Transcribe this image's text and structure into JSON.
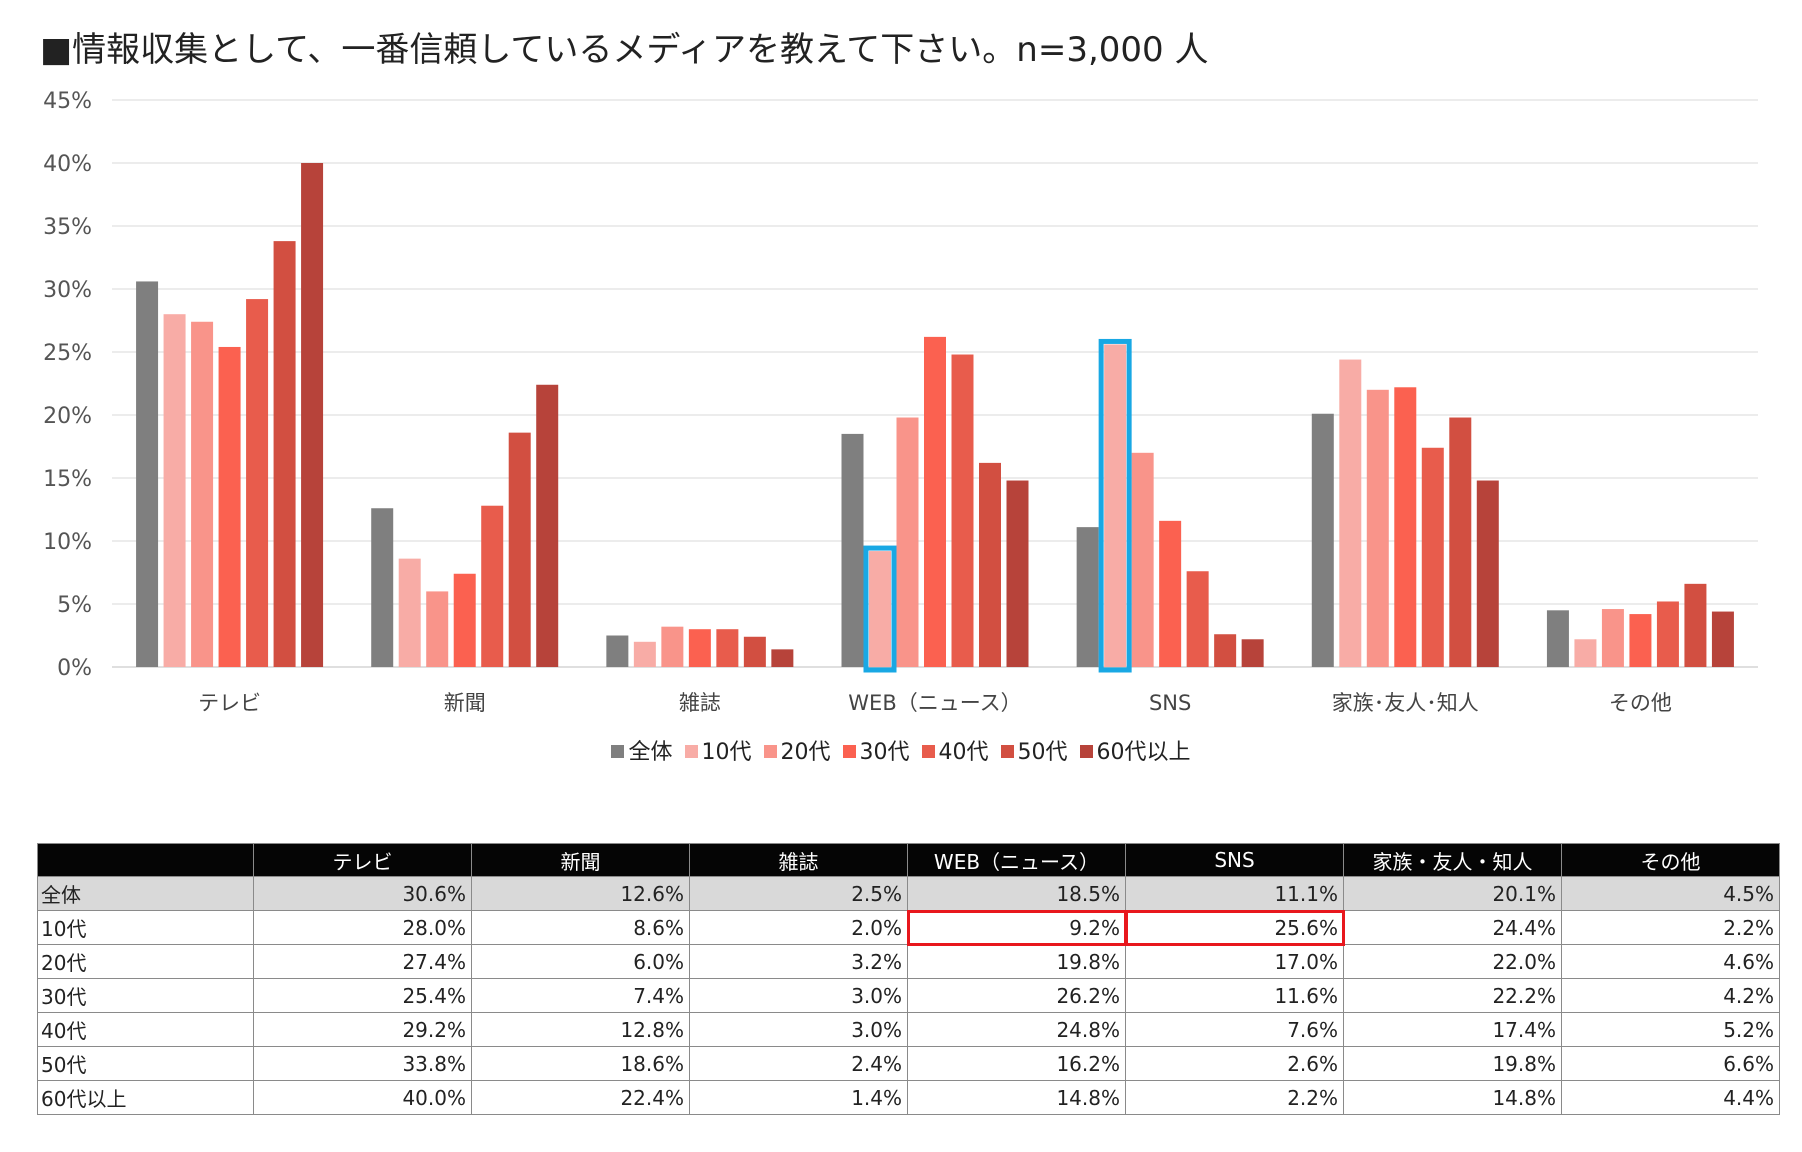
{
  "title": "■情報収集として、一番信頼しているメディアを教えて下さい。n=3,000 人",
  "chart_data": {
    "type": "bar",
    "title": "■情報収集として、一番信頼しているメディアを教えて下さい。n=3,000 人",
    "categories": [
      "テレビ",
      "新聞",
      "雑誌",
      "WEB（ニュース）",
      "SNS",
      "家族･友人･知人",
      "その他"
    ],
    "series": [
      {
        "name": "全体",
        "color": "#7f7f7f",
        "values": [
          30.6,
          12.6,
          2.5,
          18.5,
          11.1,
          20.1,
          4.5
        ]
      },
      {
        "name": "10代",
        "color": "#f8aca6",
        "values": [
          28.0,
          8.6,
          2.0,
          9.2,
          25.6,
          24.4,
          2.2
        ]
      },
      {
        "name": "20代",
        "color": "#f9948a",
        "values": [
          27.4,
          6.0,
          3.2,
          19.8,
          17.0,
          22.0,
          4.6
        ]
      },
      {
        "name": "30代",
        "color": "#fb6150",
        "values": [
          25.4,
          7.4,
          3.0,
          26.2,
          11.6,
          22.2,
          4.2
        ]
      },
      {
        "name": "40代",
        "color": "#e85c4c",
        "values": [
          29.2,
          12.8,
          3.0,
          24.8,
          7.6,
          17.4,
          5.2
        ]
      },
      {
        "name": "50代",
        "color": "#d24f41",
        "values": [
          33.8,
          18.6,
          2.4,
          16.2,
          2.6,
          19.8,
          6.6
        ]
      },
      {
        "name": "60代以上",
        "color": "#b7433a",
        "values": [
          40.0,
          22.4,
          1.4,
          14.8,
          2.2,
          14.8,
          4.4
        ]
      }
    ],
    "ylim": [
      0,
      45
    ],
    "yticks": [
      "0%",
      "5%",
      "10%",
      "15%",
      "20%",
      "25%",
      "30%",
      "35%",
      "40%",
      "45%"
    ],
    "grid": true,
    "legend_position": "bottom",
    "highlight_color": "#19a8e4",
    "highlights": [
      {
        "series": "10代",
        "category": "WEB（ニュース）"
      },
      {
        "series": "10代",
        "category": "SNS"
      }
    ]
  },
  "table": {
    "headers": [
      "",
      "テレビ",
      "新聞",
      "雑誌",
      "WEB（ニュース）",
      "SNS",
      "家族・友人・知人",
      "その他"
    ],
    "rows": [
      [
        "全体",
        "30.6%",
        "12.6%",
        "2.5%",
        "18.5%",
        "11.1%",
        "20.1%",
        "4.5%"
      ],
      [
        "10代",
        "28.0%",
        "8.6%",
        "2.0%",
        "9.2%",
        "25.6%",
        "24.4%",
        "2.2%"
      ],
      [
        "20代",
        "27.4%",
        "6.0%",
        "3.2%",
        "19.8%",
        "17.0%",
        "22.0%",
        "4.6%"
      ],
      [
        "30代",
        "25.4%",
        "7.4%",
        "3.0%",
        "26.2%",
        "11.6%",
        "22.2%",
        "4.2%"
      ],
      [
        "40代",
        "29.2%",
        "12.8%",
        "3.0%",
        "24.8%",
        "7.6%",
        "17.4%",
        "5.2%"
      ],
      [
        "50代",
        "33.8%",
        "18.6%",
        "2.4%",
        "16.2%",
        "2.6%",
        "19.8%",
        "6.6%"
      ],
      [
        "60代以上",
        "40.0%",
        "22.4%",
        "1.4%",
        "14.8%",
        "2.2%",
        "14.8%",
        "4.4%"
      ]
    ],
    "highlight_color": "#e8171d"
  }
}
